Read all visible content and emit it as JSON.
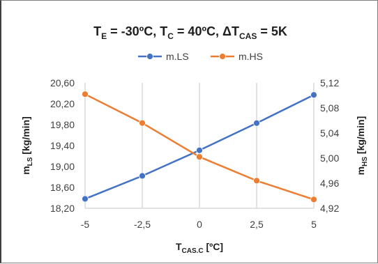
{
  "chart_data": {
    "type": "line",
    "title": {
      "parts": [
        {
          "text": "T",
          "sub": "E",
          "rest": " = -30ºC, "
        },
        {
          "text": "T",
          "sub": "C",
          "rest": " = 40ºC, "
        },
        {
          "text": "ΔT",
          "sub": "CAS",
          "rest": " = 5K"
        }
      ]
    },
    "categories": [
      "-5",
      "-2,5",
      "0",
      "2,5",
      "5"
    ],
    "x": [
      -5,
      -2.5,
      0,
      2.5,
      5
    ],
    "xlabel": {
      "main": "T",
      "sub": "CAS.C",
      "rest": " [ºC]"
    },
    "ylabel_left": {
      "main": "m",
      "sub": "LS",
      "rest": " [kg/min]"
    },
    "ylabel_right": {
      "main": "m",
      "sub": "HS",
      "rest": " [kg/min]"
    },
    "ylim_left": [
      18.2,
      20.6
    ],
    "ylim_right": [
      4.92,
      5.12
    ],
    "yticks_left": [
      "20,60",
      "20,20",
      "19,80",
      "19,40",
      "19,00",
      "18,60",
      "18,20"
    ],
    "yticks_right": [
      "5,12",
      "5,08",
      "5,04",
      "5,00",
      "4,96",
      "4,92"
    ],
    "yticks_left_values": [
      20.6,
      20.2,
      19.8,
      19.4,
      19.0,
      18.6,
      18.2
    ],
    "yticks_right_values": [
      5.12,
      5.08,
      5.04,
      5.0,
      4.96,
      4.92
    ],
    "grid": "vertical",
    "legend_position": "top",
    "series": [
      {
        "name": "m.LS",
        "axis": "left",
        "color": "#4472c4",
        "values": [
          18.38,
          18.82,
          19.31,
          19.83,
          20.37
        ]
      },
      {
        "name": "m.HS",
        "axis": "right",
        "color": "#ed7d31",
        "values": [
          5.102,
          5.056,
          5.002,
          4.964,
          4.934
        ]
      }
    ]
  }
}
